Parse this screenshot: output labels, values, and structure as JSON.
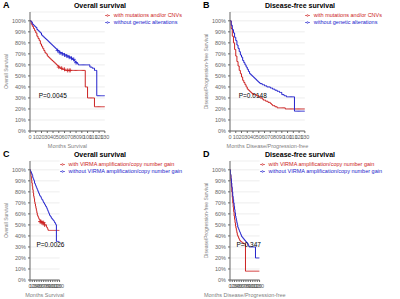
{
  "chart_data": [
    {
      "type": "line",
      "title": "Overall survival",
      "xlabel": "Months Survival",
      "ylabel": "Overall Survival",
      "annotations": [
        "A",
        "P=0.0045"
      ],
      "legend": "upper right",
      "grid": true,
      "x": [
        0,
        2,
        4,
        6,
        8,
        10,
        12,
        14,
        16,
        18,
        20,
        22,
        24,
        26,
        28,
        30,
        32,
        34,
        36,
        38,
        40,
        42,
        44,
        46,
        48,
        50,
        52,
        54,
        56,
        58,
        60,
        62,
        64,
        66,
        68,
        70,
        72,
        74,
        76,
        78,
        80,
        82,
        84,
        86,
        88,
        90,
        92,
        94,
        96,
        98,
        100,
        102,
        104,
        106,
        108,
        110,
        112,
        114,
        116,
        118,
        120,
        122,
        124,
        126,
        128,
        130
      ],
      "series": [
        {
          "name": "with mutations and/or CNVs",
          "color": "#cc2222",
          "line_style": "step",
          "values": [
            100,
            97,
            95,
            93,
            91,
            89,
            86,
            84,
            82,
            79,
            77,
            75,
            73,
            71,
            70,
            68,
            67,
            66,
            65,
            64,
            63,
            62,
            61,
            60,
            59,
            58,
            57,
            57,
            56,
            56,
            55,
            55,
            55,
            55,
            55,
            55,
            55,
            55,
            55,
            55,
            55,
            55,
            55,
            55,
            55,
            55,
            55,
            55,
            40,
            40,
            30,
            30,
            30,
            30,
            30,
            30,
            22,
            22,
            22,
            22,
            22,
            22,
            22,
            22,
            22,
            22
          ]
        },
        {
          "name": "without genetic alterations",
          "color": "#2222cc",
          "line_style": "step",
          "values": [
            100,
            99,
            97,
            96,
            95,
            94,
            92,
            91,
            90,
            89,
            87,
            86,
            85,
            84,
            83,
            82,
            81,
            80,
            79,
            78,
            77,
            76,
            75,
            74,
            73,
            72,
            71,
            71,
            70,
            70,
            69,
            69,
            68,
            68,
            67,
            67,
            66,
            65,
            64,
            63,
            62,
            61,
            60,
            60,
            60,
            60,
            60,
            60,
            60,
            60,
            60,
            60,
            58,
            58,
            57,
            57,
            55,
            55,
            32,
            32,
            32,
            32,
            32,
            32,
            32,
            32
          ]
        },
        {
          "type": "scatter",
          "marker": "+",
          "color": "#cc2222",
          "x": [
            50,
            55,
            60,
            65,
            68,
            70
          ],
          "values": [
            58,
            57,
            56,
            55,
            55,
            55
          ]
        },
        {
          "type": "scatter",
          "marker": "+",
          "color": "#2222cc",
          "x": [
            48,
            52,
            56,
            60,
            64,
            68,
            72,
            76,
            80
          ],
          "values": [
            73,
            71,
            70,
            69,
            68,
            67,
            66,
            65,
            62
          ]
        }
      ],
      "xlim": [
        0,
        130
      ],
      "xticks": [
        0,
        10,
        20,
        30,
        40,
        50,
        60,
        70,
        80,
        90,
        100,
        110,
        120,
        130
      ],
      "ylim": [
        0,
        108
      ],
      "yticks": [
        {
          "value": 0,
          "label": "0%"
        },
        {
          "value": 10,
          "label": "10%"
        },
        {
          "value": 20,
          "label": "20%"
        },
        {
          "value": 30,
          "label": "30%"
        },
        {
          "value": 40,
          "label": "40%"
        },
        {
          "value": 50,
          "label": "50%"
        },
        {
          "value": 60,
          "label": "60%"
        },
        {
          "value": 70,
          "label": "70%"
        },
        {
          "value": 80,
          "label": "80%"
        },
        {
          "value": 90,
          "label": "90%"
        },
        {
          "value": 100,
          "label": "100%"
        }
      ]
    },
    {
      "type": "line",
      "title": "Disease-free survival",
      "xlabel": "Months Disease/Progression-free",
      "ylabel": "Disease/Progression-free Survival",
      "annotations": [
        "B",
        "P=0.0148"
      ],
      "legend": "upper right",
      "grid": true,
      "x": [
        0,
        2,
        4,
        6,
        8,
        10,
        12,
        14,
        16,
        18,
        20,
        22,
        24,
        26,
        28,
        30,
        32,
        34,
        36,
        38,
        40,
        42,
        44,
        46,
        48,
        50,
        52,
        54,
        56,
        58,
        60,
        62,
        64,
        66,
        68,
        70,
        72,
        74,
        76,
        78,
        80,
        82,
        84,
        86,
        88,
        90,
        92,
        94,
        96,
        98,
        100,
        102,
        104,
        106,
        108,
        110,
        112,
        114,
        116,
        118,
        120,
        122,
        124,
        126,
        128,
        130
      ],
      "series": [
        {
          "name": "with mutations and/or CNVs",
          "color": "#cc2222",
          "line_style": "step",
          "values": [
            100,
            93,
            86,
            80,
            74,
            68,
            63,
            59,
            55,
            52,
            49,
            46,
            44,
            42,
            40,
            38,
            37,
            36,
            35,
            34,
            33,
            33,
            33,
            32,
            32,
            31,
            30,
            30,
            29,
            28,
            28,
            27,
            27,
            26,
            26,
            25,
            24,
            23,
            23,
            22,
            22,
            21,
            21,
            21,
            21,
            21,
            21,
            21,
            20,
            20,
            20,
            20,
            20,
            20,
            20,
            20,
            20,
            20,
            20,
            20,
            20,
            20,
            20,
            20,
            20,
            20
          ]
        },
        {
          "name": "without genetic alterations",
          "color": "#2222cc",
          "line_style": "step",
          "values": [
            100,
            96,
            92,
            89,
            85,
            82,
            78,
            75,
            72,
            69,
            67,
            64,
            62,
            60,
            58,
            56,
            54,
            52,
            51,
            50,
            49,
            48,
            47,
            46,
            45,
            44,
            43,
            43,
            42,
            42,
            41,
            41,
            40,
            40,
            40,
            39,
            39,
            38,
            38,
            37,
            37,
            36,
            36,
            35,
            35,
            33,
            33,
            32,
            32,
            31,
            31,
            31,
            31,
            31,
            31,
            31,
            18,
            18,
            18,
            18,
            18,
            18,
            18,
            18,
            18,
            18
          ]
        }
      ],
      "xlim": [
        0,
        130
      ],
      "xticks": [
        0,
        10,
        20,
        30,
        40,
        50,
        60,
        70,
        80,
        90,
        100,
        110,
        120,
        130
      ],
      "ylim": [
        0,
        108
      ],
      "yticks": [
        {
          "value": 0,
          "label": "0%"
        },
        {
          "value": 10,
          "label": "10%"
        },
        {
          "value": 20,
          "label": "20%"
        },
        {
          "value": 30,
          "label": "30%"
        },
        {
          "value": 40,
          "label": "40%"
        },
        {
          "value": 50,
          "label": "50%"
        },
        {
          "value": 60,
          "label": "60%"
        },
        {
          "value": 70,
          "label": "70%"
        },
        {
          "value": 80,
          "label": "80%"
        },
        {
          "value": 90,
          "label": "90%"
        },
        {
          "value": 100,
          "label": "100%"
        }
      ]
    },
    {
      "type": "line",
      "title": "Overall survival",
      "xlabel": "Months Survival",
      "ylabel": "Overall Survival",
      "annotations": [
        "C",
        "P=0.0026"
      ],
      "legend": "upper right",
      "grid": true,
      "x": [
        0,
        2,
        4,
        6,
        8,
        10,
        12,
        14,
        16,
        18,
        20,
        22,
        24,
        26,
        28,
        30,
        32,
        34,
        36,
        38,
        40,
        42,
        44,
        46,
        48,
        50,
        52,
        54,
        56,
        58,
        60,
        62,
        64,
        66,
        68,
        70,
        72,
        74,
        76,
        78,
        80,
        82,
        84,
        86,
        88,
        90,
        92,
        94,
        96,
        98,
        100,
        102,
        104,
        106,
        108,
        110,
        112,
        114,
        116,
        118,
        120,
        122,
        124,
        126,
        128,
        130
      ],
      "series": [
        {
          "name": "with VIRMA amplification/copy number gain",
          "color": "#cc2222",
          "line_style": "step",
          "values": [
            100,
            97,
            94,
            91,
            88,
            85,
            82,
            79,
            76,
            74,
            71,
            69,
            67,
            65,
            63,
            61,
            59,
            58,
            57,
            56,
            55,
            55,
            54,
            54,
            53,
            53,
            52,
            52,
            52,
            52,
            52,
            50,
            50,
            50,
            50,
            50,
            48,
            48,
            47,
            46,
            45,
            45,
            45,
            45,
            45,
            45,
            45,
            45,
            45,
            45,
            45,
            45,
            45,
            45,
            45,
            45,
            45,
            45,
            45,
            45,
            45,
            45,
            45,
            45,
            45,
            45
          ]
        },
        {
          "name": "without VIRMA amplification/copy number gain",
          "color": "#2222cc",
          "line_style": "step",
          "values": [
            100,
            99,
            98,
            97,
            96,
            95,
            93,
            92,
            91,
            90,
            88,
            87,
            86,
            85,
            84,
            83,
            82,
            81,
            80,
            79,
            78,
            77,
            76,
            76,
            75,
            74,
            73,
            73,
            72,
            71,
            70,
            70,
            69,
            68,
            67,
            67,
            66,
            65,
            64,
            63,
            62,
            61,
            60,
            59,
            58,
            58,
            57,
            56,
            56,
            55,
            55,
            54,
            54,
            53,
            52,
            52,
            51,
            50,
            35,
            35,
            35,
            35,
            35,
            35,
            35,
            35
          ]
        },
        {
          "type": "scatter",
          "marker": "+",
          "color": "#cc2222",
          "x": [
            44,
            48,
            52,
            56,
            60,
            64
          ],
          "values": [
            53,
            53,
            52,
            52,
            52,
            50
          ]
        }
      ],
      "xlim": [
        0,
        130
      ],
      "xticks": [
        0,
        10,
        20,
        30,
        40,
        50,
        60,
        70,
        80,
        90,
        100,
        110,
        120,
        130
      ],
      "ylim": [
        0,
        108
      ],
      "yticks": [
        {
          "value": 0,
          "label": "0%"
        },
        {
          "value": 10,
          "label": "10%"
        },
        {
          "value": 20,
          "label": "20%"
        },
        {
          "value": 30,
          "label": "30%"
        },
        {
          "value": 40,
          "label": "40%"
        },
        {
          "value": 50,
          "label": "50%"
        },
        {
          "value": 60,
          "label": "60%"
        },
        {
          "value": 70,
          "label": "70%"
        },
        {
          "value": 80,
          "label": "80%"
        },
        {
          "value": 90,
          "label": "90%"
        },
        {
          "value": 100,
          "label": "100%"
        }
      ]
    },
    {
      "type": "line",
      "title": "Disease-free survival",
      "xlabel": "Months Disease/Progression-free",
      "ylabel": "Disease/Progression-free Survival",
      "annotations": [
        "D",
        "P=0.347"
      ],
      "legend": "upper right",
      "grid": true,
      "x": [
        0,
        2,
        4,
        6,
        8,
        10,
        12,
        14,
        16,
        18,
        20,
        22,
        24,
        26,
        28,
        30,
        32,
        34,
        36,
        38,
        40,
        42,
        44,
        46,
        48,
        50,
        52,
        54,
        56,
        58,
        60,
        62,
        64,
        66,
        68,
        70,
        72,
        74,
        76,
        78,
        80,
        82,
        84,
        86,
        88,
        90,
        92,
        94,
        96,
        98,
        100,
        102,
        104,
        106,
        108,
        110,
        112,
        114,
        116,
        118,
        120,
        122,
        124,
        126,
        128,
        130
      ],
      "series": [
        {
          "name": "with VIRMA amplification/copy number gain",
          "color": "#cc2222",
          "line_style": "step",
          "values": [
            100,
            95,
            90,
            85,
            80,
            75,
            70,
            66,
            62,
            58,
            55,
            52,
            49,
            47,
            45,
            43,
            41,
            40,
            39,
            38,
            37,
            36,
            36,
            35,
            35,
            35,
            34,
            34,
            34,
            33,
            33,
            33,
            33,
            33,
            8,
            8,
            8,
            8,
            8,
            8,
            8,
            8,
            8,
            8,
            8,
            8,
            8,
            8,
            8,
            8,
            8,
            8,
            8,
            8,
            8,
            8,
            8,
            8,
            8,
            8,
            8,
            8,
            8,
            8,
            8,
            8
          ]
        },
        {
          "name": "without VIRMA amplification/copy number gain",
          "color": "#2222cc",
          "line_style": "step",
          "values": [
            100,
            96,
            92,
            88,
            84,
            80,
            76,
            73,
            70,
            67,
            64,
            61,
            58,
            56,
            54,
            52,
            50,
            48,
            47,
            46,
            45,
            44,
            43,
            42,
            41,
            40,
            39,
            39,
            38,
            38,
            37,
            37,
            36,
            36,
            35,
            35,
            34,
            34,
            33,
            33,
            32,
            31,
            30,
            30,
            30,
            30,
            30,
            30,
            30,
            30,
            30,
            30,
            30,
            30,
            30,
            30,
            20,
            20,
            20,
            20,
            20,
            20,
            20,
            20,
            20,
            20
          ]
        }
      ],
      "xlim": [
        0,
        130
      ],
      "xticks": [
        0,
        10,
        20,
        30,
        40,
        50,
        60,
        70,
        80,
        90,
        100,
        110,
        120,
        130
      ],
      "ylim": [
        0,
        108
      ],
      "yticks": [
        {
          "value": 0,
          "label": "0%"
        },
        {
          "value": 10,
          "label": "10%"
        },
        {
          "value": 20,
          "label": "20%"
        },
        {
          "value": 30,
          "label": "30%"
        },
        {
          "value": 40,
          "label": "40%"
        },
        {
          "value": 50,
          "label": "50%"
        },
        {
          "value": 60,
          "label": "60%"
        },
        {
          "value": 70,
          "label": "70%"
        },
        {
          "value": 80,
          "label": "80%"
        },
        {
          "value": 90,
          "label": "90%"
        },
        {
          "value": 100,
          "label": "100%"
        }
      ]
    }
  ]
}
